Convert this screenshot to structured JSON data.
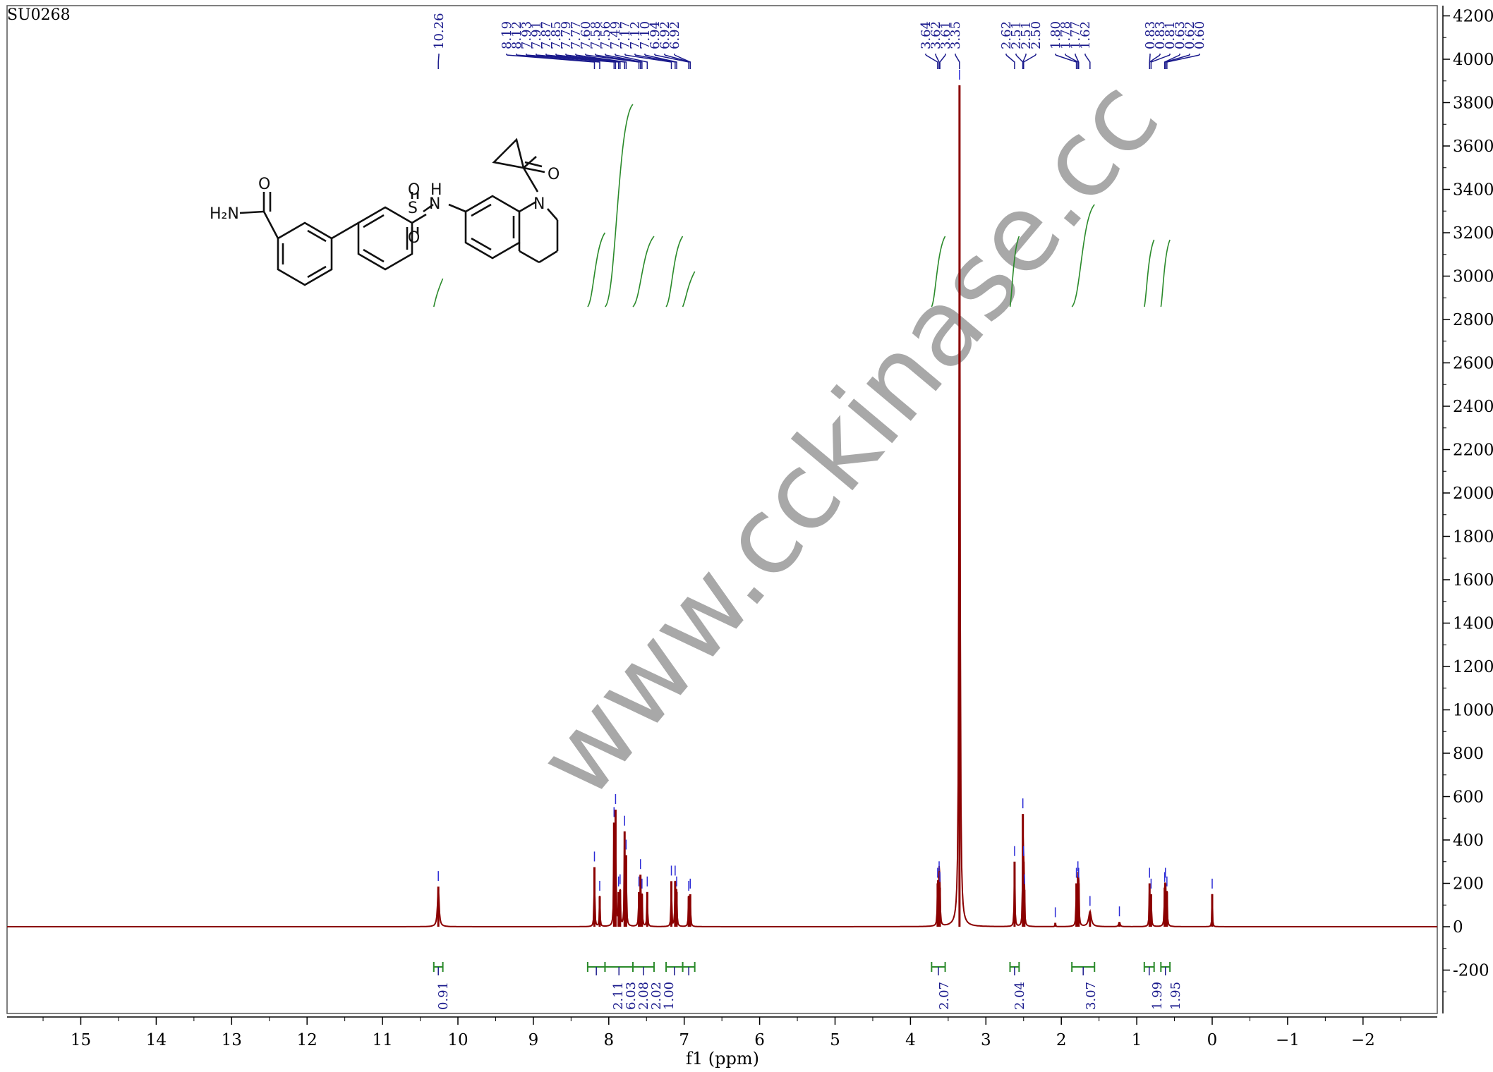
{
  "sample_id": "SU0268",
  "watermark": "www.cckinase.cc",
  "chart_data": {
    "type": "line",
    "title": "",
    "xlabel": "f1 (ppm)",
    "ylabel": "",
    "xlim": [
      15.9,
      -2.9
    ],
    "ylim": [
      -350,
      4250
    ],
    "x_ticks": [
      15,
      14,
      13,
      12,
      11,
      10,
      9,
      8,
      7,
      6,
      5,
      4,
      3,
      2,
      1,
      0,
      -1,
      -2
    ],
    "x_tick_labels": [
      "15",
      "14",
      "13",
      "12",
      "11",
      "10",
      "9",
      "8",
      "7",
      "6",
      "5",
      "4",
      "3",
      "2",
      "1",
      "0",
      "−1",
      "−2"
    ],
    "y_ticks": [
      4200,
      4000,
      3800,
      3600,
      3400,
      3200,
      3000,
      2800,
      2600,
      2400,
      2200,
      2000,
      1800,
      1600,
      1400,
      1200,
      1000,
      800,
      600,
      400,
      200,
      0,
      -200
    ],
    "y_tick_labels": [
      "4200",
      "4000",
      "3800",
      "3600",
      "3400",
      "3200",
      "3000",
      "2800",
      "2600",
      "2400",
      "2200",
      "2000",
      "1800",
      "1600",
      "1400",
      "1200",
      "1000",
      "800",
      "600",
      "400",
      "200",
      "0",
      "-200"
    ],
    "peak_groups": [
      {
        "labels": [
          "10.26"
        ],
        "ppm": [
          10.26
        ]
      },
      {
        "labels": [
          "8.19",
          "8.12",
          "7.93",
          "7.91",
          "7.87",
          "7.85",
          "7.79",
          "7.77",
          "7.60",
          "7.58",
          "7.56",
          "7.49",
          "7.17",
          "7.12",
          "7.10",
          "6.94",
          "6.92",
          "6.92"
        ],
        "ppm": [
          8.19,
          8.12,
          7.93,
          7.91,
          7.87,
          7.85,
          7.79,
          7.77,
          7.6,
          7.58,
          7.56,
          7.49,
          7.17,
          7.12,
          7.1,
          6.94,
          6.92,
          6.92
        ]
      },
      {
        "labels": [
          "3.64",
          "3.62",
          "3.61",
          "3.35"
        ],
        "ppm": [
          3.64,
          3.62,
          3.61,
          3.35
        ]
      },
      {
        "labels": [
          "2.62",
          "2.51",
          "2.51",
          "2.50",
          "1.80",
          "1.78",
          "1.77",
          "1.62"
        ],
        "ppm": [
          2.62,
          2.51,
          2.51,
          2.5,
          1.8,
          1.78,
          1.77,
          1.62
        ]
      },
      {
        "labels": [
          "0.83",
          "0.83",
          "0.81",
          "0.63",
          "0.62",
          "0.60"
        ],
        "ppm": [
          0.83,
          0.83,
          0.81,
          0.63,
          0.62,
          0.6
        ]
      }
    ],
    "peaks": [
      {
        "ppm": 10.26,
        "height": 185,
        "width": 0.012
      },
      {
        "ppm": 8.19,
        "height": 275,
        "width": 0.005
      },
      {
        "ppm": 8.12,
        "height": 140,
        "width": 0.005
      },
      {
        "ppm": 7.93,
        "height": 480,
        "width": 0.005
      },
      {
        "ppm": 7.91,
        "height": 540,
        "width": 0.005
      },
      {
        "ppm": 7.87,
        "height": 160,
        "width": 0.005
      },
      {
        "ppm": 7.85,
        "height": 170,
        "width": 0.005
      },
      {
        "ppm": 7.79,
        "height": 440,
        "width": 0.005
      },
      {
        "ppm": 7.77,
        "height": 330,
        "width": 0.005
      },
      {
        "ppm": 7.6,
        "height": 160,
        "width": 0.005
      },
      {
        "ppm": 7.58,
        "height": 240,
        "width": 0.005
      },
      {
        "ppm": 7.56,
        "height": 150,
        "width": 0.005
      },
      {
        "ppm": 7.49,
        "height": 160,
        "width": 0.005
      },
      {
        "ppm": 7.17,
        "height": 210,
        "width": 0.005
      },
      {
        "ppm": 7.12,
        "height": 210,
        "width": 0.005
      },
      {
        "ppm": 7.1,
        "height": 160,
        "width": 0.005
      },
      {
        "ppm": 6.94,
        "height": 140,
        "width": 0.005
      },
      {
        "ppm": 6.92,
        "height": 150,
        "width": 0.005
      },
      {
        "ppm": 3.64,
        "height": 200,
        "width": 0.005
      },
      {
        "ppm": 3.62,
        "height": 230,
        "width": 0.005
      },
      {
        "ppm": 3.61,
        "height": 180,
        "width": 0.005
      },
      {
        "ppm": 3.35,
        "height": 3880,
        "width": 0.008
      },
      {
        "ppm": 2.62,
        "height": 300,
        "width": 0.005
      },
      {
        "ppm": 2.51,
        "height": 520,
        "width": 0.004
      },
      {
        "ppm": 2.5,
        "height": 300,
        "width": 0.004
      },
      {
        "ppm": 2.49,
        "height": 170,
        "width": 0.004
      },
      {
        "ppm": 2.08,
        "height": 18,
        "width": 0.004
      },
      {
        "ppm": 1.8,
        "height": 200,
        "width": 0.005
      },
      {
        "ppm": 1.78,
        "height": 230,
        "width": 0.005
      },
      {
        "ppm": 1.77,
        "height": 200,
        "width": 0.005
      },
      {
        "ppm": 1.62,
        "height": 70,
        "width": 0.02
      },
      {
        "ppm": 1.23,
        "height": 22,
        "width": 0.01
      },
      {
        "ppm": 0.83,
        "height": 200,
        "width": 0.005
      },
      {
        "ppm": 0.81,
        "height": 150,
        "width": 0.005
      },
      {
        "ppm": 0.63,
        "height": 180,
        "width": 0.005
      },
      {
        "ppm": 0.62,
        "height": 200,
        "width": 0.005
      },
      {
        "ppm": 0.6,
        "height": 160,
        "width": 0.005
      },
      {
        "ppm": 0.0,
        "height": 150,
        "width": 0.004
      }
    ],
    "integrals": [
      {
        "label": "0.91",
        "from": 10.32,
        "to": 10.2
      },
      {
        "label": "2.11",
        "from": 8.28,
        "to": 8.05
      },
      {
        "label": "6.03",
        "from": 8.05,
        "to": 7.68
      },
      {
        "label": "2.08",
        "from": 7.68,
        "to": 7.4
      },
      {
        "label": "2.02",
        "from": 7.24,
        "to": 7.02
      },
      {
        "label": "1.00",
        "from": 7.02,
        "to": 6.86
      },
      {
        "label": "2.07",
        "from": 3.72,
        "to": 3.54
      },
      {
        "label": "2.04",
        "from": 2.68,
        "to": 2.56
      },
      {
        "label": "3.07",
        "from": 1.86,
        "to": 1.56
      },
      {
        "label": "1.99",
        "from": 0.9,
        "to": 0.77
      },
      {
        "label": "1.95",
        "from": 0.68,
        "to": 0.56
      }
    ],
    "colors": {
      "spectrum": "#8b0000",
      "labels": "#1a1a8c",
      "integral": "#2a8a2a"
    }
  }
}
